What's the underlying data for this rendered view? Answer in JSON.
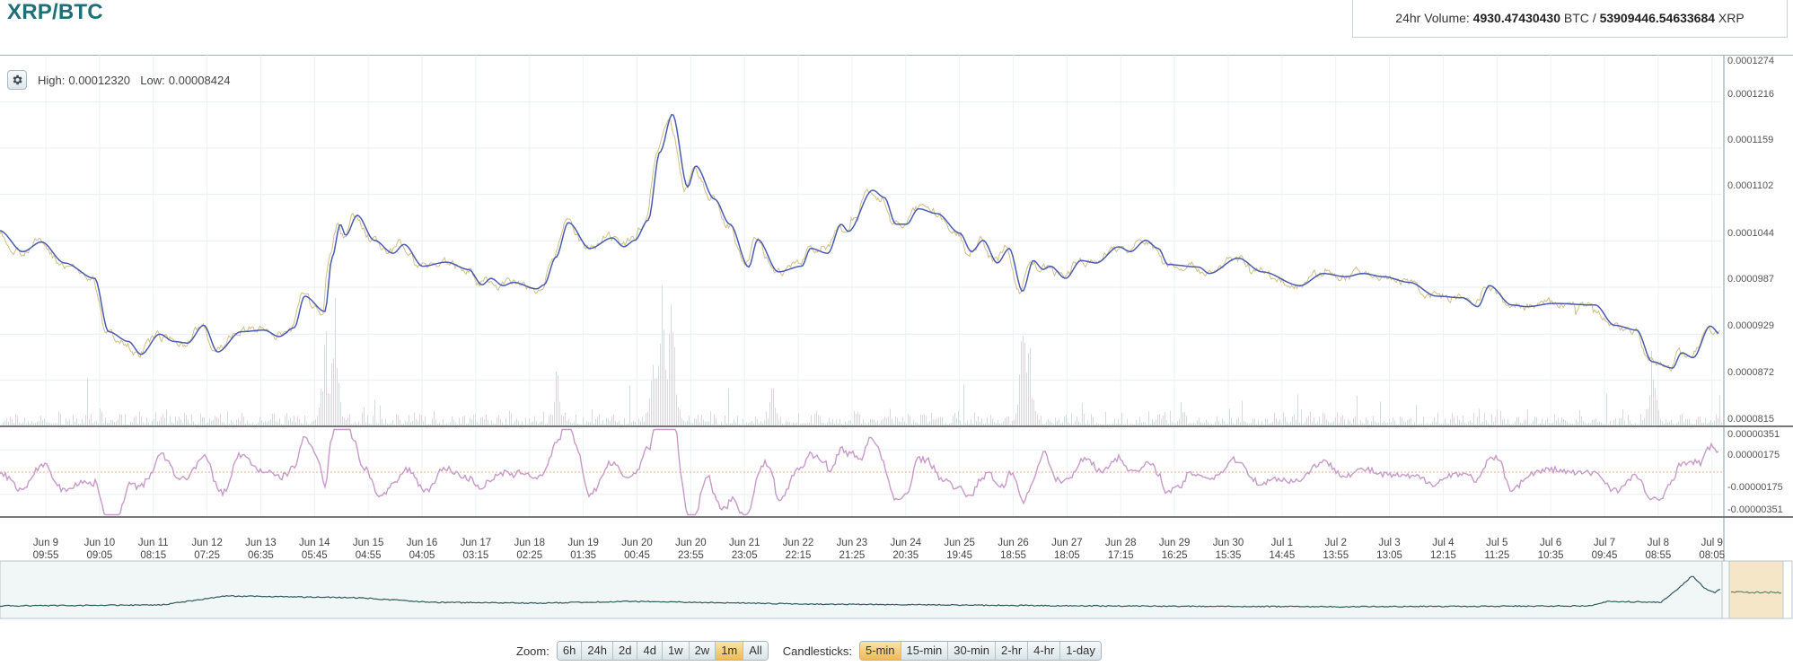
{
  "header": {
    "pair_title": "XRP/BTC",
    "volume_label": "24hr Volume:",
    "volume_btc": "4930.47430430",
    "btc_unit": "BTC /",
    "volume_xrp": "53909446.54633684",
    "xrp_unit": "XRP"
  },
  "chart_info": {
    "settings_icon": "gear-icon",
    "high_label": "High:",
    "high_value": "0.00012320",
    "low_label": "Low:",
    "low_value": "0.00008424"
  },
  "chart_data": {
    "type": "line",
    "ylim": [
      8.15e-05,
      0.0001274
    ],
    "price_ticks": [
      "0.0001274",
      "0.0001216",
      "0.0001159",
      "0.0001102",
      "0.0001044",
      "0.0000987",
      "0.0000929",
      "0.0000872",
      "0.0000815"
    ],
    "indicator_ylim": [
      -3.51e-06,
      3.51e-06
    ],
    "indicator_ticks": [
      "0.00000351",
      "0.00000175",
      "-0.00000175",
      "-0.00000351"
    ],
    "x_ticks": [
      {
        "date": "Jun 9",
        "time": "09:55"
      },
      {
        "date": "Jun 10",
        "time": "09:05"
      },
      {
        "date": "Jun 11",
        "time": "08:15"
      },
      {
        "date": "Jun 12",
        "time": "07:25"
      },
      {
        "date": "Jun 13",
        "time": "06:35"
      },
      {
        "date": "Jun 14",
        "time": "05:45"
      },
      {
        "date": "Jun 15",
        "time": "04:55"
      },
      {
        "date": "Jun 16",
        "time": "04:05"
      },
      {
        "date": "Jun 17",
        "time": "03:15"
      },
      {
        "date": "Jun 18",
        "time": "02:25"
      },
      {
        "date": "Jun 19",
        "time": "01:35"
      },
      {
        "date": "Jun 20",
        "time": "00:45"
      },
      {
        "date": "Jun 20",
        "time": "23:55"
      },
      {
        "date": "Jun 21",
        "time": "23:05"
      },
      {
        "date": "Jun 22",
        "time": "22:15"
      },
      {
        "date": "Jun 23",
        "time": "21:25"
      },
      {
        "date": "Jun 24",
        "time": "20:35"
      },
      {
        "date": "Jun 25",
        "time": "19:45"
      },
      {
        "date": "Jun 26",
        "time": "18:55"
      },
      {
        "date": "Jun 27",
        "time": "18:05"
      },
      {
        "date": "Jun 28",
        "time": "17:15"
      },
      {
        "date": "Jun 29",
        "time": "16:25"
      },
      {
        "date": "Jun 30",
        "time": "15:35"
      },
      {
        "date": "Jul 1",
        "time": "14:45"
      },
      {
        "date": "Jul 2",
        "time": "13:55"
      },
      {
        "date": "Jul 3",
        "time": "13:05"
      },
      {
        "date": "Jul 4",
        "time": "12:15"
      },
      {
        "date": "Jul 5",
        "time": "11:25"
      },
      {
        "date": "Jul 6",
        "time": "10:35"
      },
      {
        "date": "Jul 7",
        "time": "09:45"
      },
      {
        "date": "Jul 8",
        "time": "08:55"
      },
      {
        "date": "Jul 9",
        "time": "08:05"
      }
    ],
    "grid": true,
    "colors": {
      "moving_average": "#4a5cb0",
      "price": "#cdb87a",
      "volume": "#cfdddd",
      "indicator": "#c79ac9",
      "navigator_line": "#2f5c5c",
      "navigator_selection": "#f5e6c8"
    },
    "series": [
      {
        "values": [
          [
            "06-08 14:00",
            0.0001057
          ],
          [
            "06-09 00:00",
            0.0001031
          ],
          [
            "06-09 08:00",
            0.0001043
          ],
          [
            "06-09 18:00",
            0.0001017
          ],
          [
            "06-10 07:00",
            9.98e-05
          ],
          [
            "06-10 13:00",
            9.32e-05
          ],
          [
            "06-10 21:30",
            9.2e-05
          ],
          [
            "06-11 03:00",
            9.04e-05
          ],
          [
            "06-11 11:00",
            9.29e-05
          ],
          [
            "06-11 17:00",
            9.2e-05
          ],
          [
            "06-11 23:00",
            9.18e-05
          ],
          [
            "06-12 06:00",
            9.4e-05
          ],
          [
            "06-12 12:00",
            9.07e-05
          ],
          [
            "06-12 22:00",
            9.32e-05
          ],
          [
            "06-13 08:00",
            9.34e-05
          ],
          [
            "06-13 14:30",
            9.26e-05
          ],
          [
            "06-13 21:00",
            9.37e-05
          ],
          [
            "06-14 01:30",
            9.76e-05
          ],
          [
            "06-14 10:15",
            9.57e-05
          ],
          [
            "06-14 13:20",
            0.0001024
          ],
          [
            "06-14 16:50",
            0.0001065
          ],
          [
            "06-14 19:10",
            0.0001051
          ],
          [
            "06-15 00:10",
            0.0001076
          ],
          [
            "06-15 07:30",
            0.0001045
          ],
          [
            "06-15 15:40",
            0.0001029
          ],
          [
            "06-15 20:20",
            0.000104
          ],
          [
            "06-16 04:25",
            0.0001013
          ],
          [
            "06-16 14:30",
            0.0001018
          ],
          [
            "06-17 00:10",
            0.0001009
          ],
          [
            "06-17 06:00",
            9.9e-05
          ],
          [
            "06-17 09:50",
            9.98e-05
          ],
          [
            "06-17 15:00",
            9.89e-05
          ],
          [
            "06-17 19:30",
            9.93e-05
          ],
          [
            "06-18 05:35",
            9.85e-05
          ],
          [
            "06-18 08:40",
            9.9e-05
          ],
          [
            "06-18 13:45",
            0.0001024
          ],
          [
            "06-18 19:10",
            0.0001067
          ],
          [
            "06-19 04:25",
            0.0001035
          ],
          [
            "06-19 14:05",
            0.0001048
          ],
          [
            "06-19 19:05",
            0.0001037
          ],
          [
            "06-19 23:45",
            0.0001045
          ],
          [
            "06-20 05:35",
            0.000107
          ],
          [
            "06-20 10:35",
            0.0001154
          ],
          [
            "06-20 16:00",
            0.0001201
          ],
          [
            "06-20 22:35",
            0.0001111
          ],
          [
            "06-21 02:05",
            0.0001137
          ],
          [
            "06-21 10:10",
            0.0001096
          ],
          [
            "06-21 16:45",
            0.0001065
          ],
          [
            "06-22 00:55",
            0.0001012
          ],
          [
            "06-22 04:45",
            0.0001046
          ],
          [
            "06-22 13:40",
            0.0001006
          ],
          [
            "06-22 23:45",
            0.0001013
          ],
          [
            "06-23 03:35",
            0.0001035
          ],
          [
            "06-23 11:00",
            0.0001029
          ],
          [
            "06-23 16:45",
            0.0001065
          ],
          [
            "06-23 19:50",
            0.0001056
          ],
          [
            "06-24 06:20",
            0.0001107
          ],
          [
            "06-24 11:20",
            0.0001098
          ],
          [
            "06-24 16:20",
            0.0001065
          ],
          [
            "06-24 21:00",
            0.0001065
          ],
          [
            "06-25 02:00",
            0.0001084
          ],
          [
            "06-25 10:10",
            0.0001078
          ],
          [
            "06-25 19:50",
            0.0001054
          ],
          [
            "06-26 00:55",
            0.0001031
          ],
          [
            "06-26 05:55",
            0.0001045
          ],
          [
            "06-26 12:05",
            0.0001017
          ],
          [
            "06-26 17:10",
            0.0001035
          ],
          [
            "06-26 22:55",
            9.82e-05
          ],
          [
            "06-27 03:35",
            0.000102
          ],
          [
            "06-27 07:50",
            0.0001009
          ],
          [
            "06-27 10:55",
            0.0001013
          ],
          [
            "06-27 17:30",
            9.98e-05
          ],
          [
            "06-28 00:05",
            0.000102
          ],
          [
            "06-28 06:40",
            0.0001017
          ],
          [
            "06-28 16:20",
            0.0001037
          ],
          [
            "06-28 21:25",
            0.0001031
          ],
          [
            "06-29 04:00",
            0.0001045
          ],
          [
            "06-29 09:25",
            0.0001035
          ],
          [
            "06-29 13:40",
            0.0001015
          ],
          [
            "06-30 02:45",
            0.0001012
          ],
          [
            "06-30 07:25",
            0.0001004
          ],
          [
            "06-30 19:50",
            0.0001023
          ],
          [
            "07-01 06:15",
            0.0001006
          ],
          [
            "07-01 22:30",
            9.89e-05
          ],
          [
            "07-02 08:35",
            0.0001004
          ],
          [
            "07-02 18:15",
            0.0001
          ],
          [
            "07-03 01:35",
            0.0001004
          ],
          [
            "07-03 10:30",
            0.0001
          ],
          [
            "07-03 21:45",
            9.93e-05
          ],
          [
            "07-04 09:20",
            9.76e-05
          ],
          [
            "07-04 20:35",
            9.74e-05
          ],
          [
            "07-05 03:10",
            9.63e-05
          ],
          [
            "07-05 08:10",
            9.89e-05
          ],
          [
            "07-05 17:50",
            9.65e-05
          ],
          [
            "07-06 00:25",
            9.63e-05
          ],
          [
            "07-06 11:40",
            9.67e-05
          ],
          [
            "07-07 05:50",
            9.65e-05
          ],
          [
            "07-07 14:00",
            9.4e-05
          ],
          [
            "07-07 23:40",
            9.34e-05
          ],
          [
            "07-08 06:15",
            8.95e-05
          ],
          [
            "07-08 15:05",
            8.87e-05
          ],
          [
            "07-08 19:00",
            9.06e-05
          ],
          [
            "07-09 00:00",
            9e-05
          ],
          [
            "07-09 07:20",
            9.39e-05
          ],
          [
            "07-09 11:40",
            9.29e-05
          ]
        ]
      }
    ]
  },
  "controls": {
    "zoom_label": "Zoom:",
    "zoom_options": [
      "6h",
      "24h",
      "2d",
      "4d",
      "1w",
      "2w",
      "1m",
      "All"
    ],
    "zoom_selected": "1m",
    "candle_label": "Candlesticks:",
    "candle_options": [
      "5-min",
      "15-min",
      "30-min",
      "2-hr",
      "4-hr",
      "1-day"
    ],
    "candle_selected": "5-min"
  }
}
